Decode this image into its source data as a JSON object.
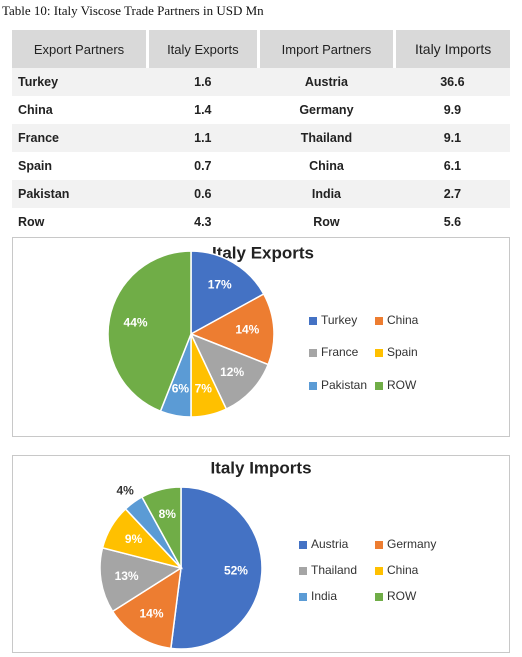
{
  "title": "Table 10: Italy Viscose Trade Partners in USD Mn",
  "table": {
    "header": [
      "Export Partners",
      "Italy Exports",
      "Import Partners",
      "Italy Imports"
    ],
    "rows": [
      [
        "Turkey",
        1.6,
        "Austria",
        36.6
      ],
      [
        "China",
        1.4,
        "Germany",
        9.9
      ],
      [
        "France",
        1.1,
        "Thailand",
        9.1
      ],
      [
        "Spain",
        0.7,
        "China",
        6.1
      ],
      [
        "Pakistan",
        0.6,
        "India",
        2.7
      ],
      [
        "Row",
        4.3,
        "Row",
        5.6
      ]
    ]
  },
  "chart_data": [
    {
      "type": "pie",
      "title": "Italy Exports",
      "categories": [
        "Turkey",
        "China",
        "France",
        "Spain",
        "Pakistan",
        "ROW"
      ],
      "values": [
        17,
        14,
        12,
        7,
        6,
        44
      ],
      "value_labels": [
        "17%",
        "14%",
        "12%",
        "7%",
        "6%",
        "44%"
      ],
      "colors": [
        "#4472c4",
        "#ed7d31",
        "#a5a5a5",
        "#ffc000",
        "#5b9bd5",
        "#70ad47"
      ],
      "legend": "right"
    },
    {
      "type": "pie",
      "title": "Italy Imports",
      "categories": [
        "Austria",
        "Germany",
        "Thailand",
        "China",
        "India",
        "ROW"
      ],
      "values": [
        52,
        14,
        13,
        9,
        4,
        8
      ],
      "value_labels": [
        "52%",
        "14%",
        "13%",
        "9%",
        "4%",
        "8%"
      ],
      "colors": [
        "#4472c4",
        "#ed7d31",
        "#a5a5a5",
        "#ffc000",
        "#5b9bd5",
        "#70ad47"
      ],
      "legend": "right"
    }
  ]
}
